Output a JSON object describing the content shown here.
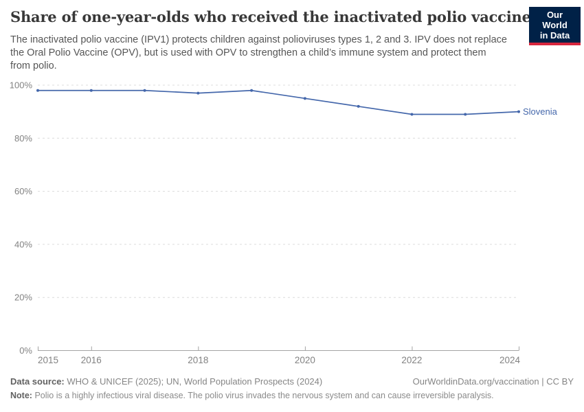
{
  "header": {
    "title": "Share of one-year-olds who received the inactivated polio vaccine",
    "subtitle": "The inactivated polio vaccine (IPV1) protects children against polioviruses types 1, 2 and 3. IPV does not replace the Oral Polio Vaccine (OPV), but is used with OPV to strengthen a child’s immune system and protect them from polio.",
    "logo": {
      "line1": "Our World",
      "line2": "in Data",
      "bg_color": "#002147",
      "accent_color": "#d7263d"
    }
  },
  "chart_data": {
    "type": "line",
    "title": "Share of one-year-olds who received the inactivated polio vaccine",
    "x": [
      2015,
      2016,
      2017,
      2018,
      2019,
      2020,
      2021,
      2022,
      2023,
      2024
    ],
    "series": [
      {
        "name": "Slovenia",
        "color": "#4467ab",
        "values": [
          98,
          98,
          98,
          97,
          98,
          95,
          92,
          89,
          89,
          90
        ]
      }
    ],
    "unit": "%",
    "xlim": [
      2015,
      2024
    ],
    "ylim": [
      0,
      100
    ],
    "yticks": [
      0,
      20,
      40,
      60,
      80,
      100
    ],
    "xticks": [
      2015,
      2016,
      2018,
      2020,
      2022,
      2024
    ],
    "grid": "horizontal-dashed",
    "legend": "inline-end-label",
    "colors": {
      "gridline": "#dcdcdc",
      "axis": "#a3a3a3",
      "tick_label": "#828282"
    }
  },
  "footer": {
    "data_source_label": "Data source:",
    "data_source_text": "WHO & UNICEF (2025); UN, World Population Prospects (2024)",
    "url": "OurWorldinData.org/vaccination",
    "divider": "|",
    "license": "CC BY",
    "note_label": "Note:",
    "note_text": "Polio is a highly infectious viral disease. The polio virus invades the nervous system and can cause irreversible paralysis."
  }
}
